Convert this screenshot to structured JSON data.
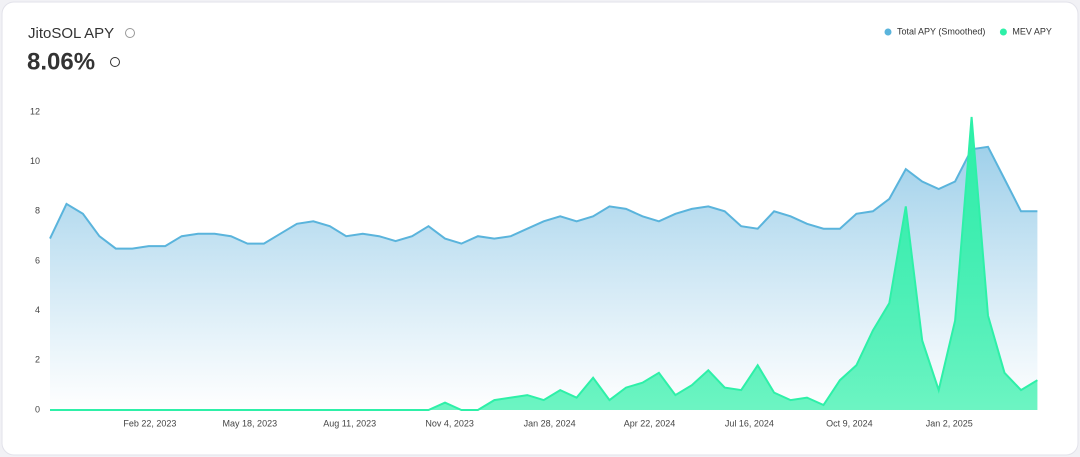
{
  "chart_data": {
    "type": "area",
    "title": "JitoSOL APY",
    "subtitle": "8.06%",
    "x": [
      "2022-11-29",
      "2022-12-13",
      "2022-12-27",
      "2023-01-10",
      "2023-01-24",
      "2023-02-07",
      "2023-02-21",
      "2023-03-07",
      "2023-03-21",
      "2023-04-04",
      "2023-04-18",
      "2023-05-02",
      "2023-05-16",
      "2023-05-30",
      "2023-06-13",
      "2023-06-27",
      "2023-07-11",
      "2023-07-25",
      "2023-08-08",
      "2023-08-22",
      "2023-09-05",
      "2023-09-19",
      "2023-10-03",
      "2023-10-17",
      "2023-10-31",
      "2023-11-14",
      "2023-11-28",
      "2023-12-12",
      "2023-12-26",
      "2024-01-09",
      "2024-01-23",
      "2024-02-06",
      "2024-02-20",
      "2024-03-05",
      "2024-03-19",
      "2024-04-02",
      "2024-04-16",
      "2024-04-30",
      "2024-05-14",
      "2024-05-28",
      "2024-06-11",
      "2024-06-25",
      "2024-07-09",
      "2024-07-23",
      "2024-08-06",
      "2024-08-20",
      "2024-09-03",
      "2024-09-17",
      "2024-10-01",
      "2024-10-15",
      "2024-10-29",
      "2024-11-12",
      "2024-11-26",
      "2024-12-10",
      "2024-12-24",
      "2025-01-07",
      "2025-01-21",
      "2025-02-04",
      "2025-02-18",
      "2025-03-04",
      "2025-03-18"
    ],
    "series": [
      {
        "name": "Total APY (Smoothed)",
        "color": "#5ab4dc",
        "values": [
          6.9,
          8.3,
          7.9,
          7.0,
          6.5,
          6.5,
          6.6,
          6.6,
          7.0,
          7.1,
          7.1,
          7.0,
          6.7,
          6.7,
          7.1,
          7.5,
          7.6,
          7.4,
          7.0,
          7.1,
          7.0,
          6.8,
          7.0,
          7.4,
          6.9,
          6.7,
          7.0,
          6.9,
          7.0,
          7.3,
          7.6,
          7.8,
          7.6,
          7.8,
          8.2,
          8.1,
          7.8,
          7.6,
          7.9,
          8.1,
          8.2,
          8.0,
          7.4,
          7.3,
          8.0,
          7.8,
          7.5,
          7.3,
          7.3,
          7.9,
          8.0,
          8.5,
          9.7,
          9.2,
          8.9,
          9.2,
          10.5,
          10.6,
          9.3,
          8.0,
          8.0
        ]
      },
      {
        "name": "MEV APY",
        "color": "#2ef0a8",
        "values": [
          0,
          0,
          0,
          0,
          0,
          0,
          0,
          0,
          0,
          0,
          0,
          0,
          0,
          0,
          0,
          0,
          0,
          0,
          0,
          0,
          0,
          0,
          0,
          0,
          0.3,
          0,
          0,
          0.4,
          0.5,
          0.6,
          0.4,
          0.8,
          0.5,
          1.3,
          0.4,
          0.9,
          1.1,
          1.5,
          0.6,
          1.0,
          1.6,
          0.9,
          0.8,
          1.8,
          0.7,
          0.4,
          0.5,
          0.2,
          1.2,
          1.8,
          3.2,
          4.3,
          8.2,
          2.8,
          0.8,
          3.6,
          11.8,
          3.8,
          1.5,
          0.8,
          1.2
        ]
      }
    ],
    "xlim": [
      "2022-11-29",
      "2025-03-27"
    ],
    "xticks": [
      {
        "value": "2023-02-22",
        "label": "Feb 22, 2023"
      },
      {
        "value": "2023-05-18",
        "label": "May 18, 2023"
      },
      {
        "value": "2023-08-11",
        "label": "Aug 11, 2023"
      },
      {
        "value": "2023-11-04",
        "label": "Nov 4, 2023"
      },
      {
        "value": "2024-01-28",
        "label": "Jan 28, 2024"
      },
      {
        "value": "2024-04-22",
        "label": "Apr 22, 2024"
      },
      {
        "value": "2024-07-16",
        "label": "Jul 16, 2024"
      },
      {
        "value": "2024-10-09",
        "label": "Oct 9, 2024"
      },
      {
        "value": "2025-01-02",
        "label": "Jan 2, 2025"
      }
    ],
    "ylim": [
      0,
      12
    ],
    "yticks": [
      0,
      2,
      4,
      6,
      8,
      10,
      12
    ],
    "grid": false,
    "legend": "top-right"
  }
}
